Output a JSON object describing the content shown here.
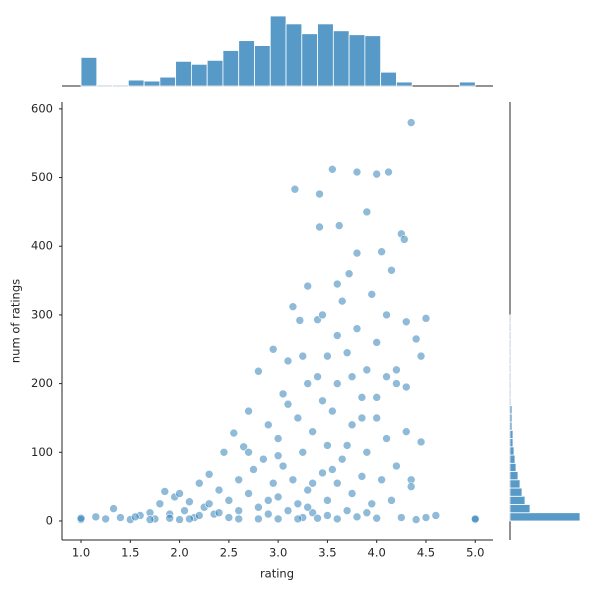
{
  "chart_data": {
    "type": "scatter",
    "x_label": "rating",
    "y_label": "num of ratings",
    "color": "#1f77b4",
    "xlim": [
      0.807,
      5.18
    ],
    "ylim": [
      -27.7,
      610
    ],
    "xticks": [
      {
        "value": 1,
        "label": "1.0"
      },
      {
        "value": 1.5,
        "label": "1.5"
      },
      {
        "value": 2,
        "label": "2.0"
      },
      {
        "value": 2.5,
        "label": "2.5"
      },
      {
        "value": 3,
        "label": "3.0"
      },
      {
        "value": 3.5,
        "label": "3.5"
      },
      {
        "value": 4,
        "label": "4.0"
      },
      {
        "value": 4.5,
        "label": "4.5"
      },
      {
        "value": 5,
        "label": "5.0"
      }
    ],
    "yticks": [
      0,
      100,
      200,
      300,
      400,
      500,
      600
    ],
    "x": [
      1.0,
      1.0,
      1.15,
      1.25,
      1.33,
      1.4,
      1.5,
      1.6,
      1.7,
      1.75,
      1.8,
      1.85,
      1.9,
      1.95,
      2.0,
      2.0,
      2.05,
      2.1,
      2.15,
      2.2,
      2.25,
      2.3,
      2.35,
      2.4,
      2.45,
      2.5,
      2.5,
      2.55,
      2.6,
      2.6,
      2.65,
      2.7,
      2.7,
      2.75,
      2.8,
      2.8,
      2.85,
      2.9,
      2.9,
      2.95,
      2.95,
      3.0,
      3.0,
      3.0,
      3.05,
      3.05,
      3.1,
      3.1,
      3.15,
      3.15,
      3.17,
      3.2,
      3.2,
      3.22,
      3.25,
      3.25,
      3.3,
      3.3,
      3.3,
      3.35,
      3.35,
      3.4,
      3.42,
      3.42,
      3.45,
      3.45,
      3.5,
      3.5,
      3.5,
      3.55,
      3.55,
      3.6,
      3.6,
      3.62,
      3.65,
      3.65,
      3.7,
      3.7,
      3.72,
      3.75,
      3.75,
      3.8,
      3.8,
      3.8,
      3.85,
      3.85,
      3.9,
      3.9,
      3.9,
      3.95,
      3.95,
      4.0,
      4.0,
      4.0,
      4.05,
      4.05,
      4.1,
      4.1,
      4.12,
      4.15,
      4.15,
      4.2,
      4.2,
      4.25,
      4.25,
      4.28,
      4.3,
      4.3,
      4.35,
      4.35,
      4.4,
      4.45,
      4.45,
      4.5,
      4.5,
      4.6,
      5.0,
      5.0,
      2.2,
      2.6,
      2.8,
      3.2,
      3.4,
      3.6,
      3.8,
      4.0,
      4.4,
      1.7,
      1.55,
      2.3,
      2.7,
      3.0,
      3.1,
      3.4,
      3.6,
      3.35,
      3.55,
      3.7,
      3.85,
      4.0,
      4.1,
      4.2,
      4.3,
      4.35,
      3.9,
      3.5,
      3.3,
      2.9,
      2.4,
      2.1,
      1.9,
      3.75,
      3.6,
      3.45,
      3.25
    ],
    "y": [
      2,
      4,
      6,
      3,
      18,
      5,
      2,
      8,
      12,
      3,
      25,
      43,
      10,
      35,
      2,
      40,
      15,
      28,
      5,
      55,
      20,
      68,
      10,
      45,
      100,
      30,
      5,
      128,
      60,
      15,
      108,
      160,
      40,
      75,
      218,
      20,
      90,
      140,
      10,
      250,
      55,
      120,
      35,
      3,
      185,
      80,
      233,
      15,
      312,
      60,
      483,
      150,
      25,
      292,
      100,
      5,
      342,
      200,
      45,
      130,
      12,
      293,
      476,
      428,
      175,
      70,
      240,
      110,
      30,
      512,
      160,
      200,
      55,
      430,
      320,
      90,
      245,
      15,
      360,
      140,
      40,
      390,
      508,
      280,
      180,
      65,
      450,
      220,
      100,
      330,
      25,
      505,
      260,
      150,
      392,
      60,
      300,
      120,
      508,
      365,
      30,
      200,
      80,
      418,
      5,
      410,
      130,
      290,
      580,
      60,
      265,
      240,
      115,
      295,
      5,
      8,
      2,
      3,
      8,
      3,
      3,
      3,
      4,
      3,
      6,
      4,
      2,
      2,
      6,
      25,
      100,
      95,
      170,
      210,
      270,
      55,
      75,
      110,
      150,
      180,
      210,
      220,
      195,
      50,
      12,
      8,
      20,
      30,
      12,
      3,
      4,
      210,
      345,
      300,
      240
    ],
    "marginal_x": {
      "bins": [
        1.0,
        1.16,
        1.32,
        1.48,
        1.64,
        1.8,
        1.96,
        2.12,
        2.28,
        2.44,
        2.6,
        2.76,
        2.92,
        3.08,
        3.24,
        3.4,
        3.56,
        3.72,
        3.88,
        4.04,
        4.2,
        4.36,
        4.52,
        4.68,
        4.84,
        5.0
      ],
      "counts": [
        29,
        1,
        1,
        6,
        5,
        9,
        25,
        22,
        26,
        36,
        46,
        41,
        71,
        63,
        53,
        63,
        56,
        52,
        51,
        14,
        4,
        0,
        0,
        0,
        4
      ]
    },
    "marginal_y": {
      "bins": [
        0,
        12,
        24,
        36,
        48,
        60,
        72,
        84,
        96,
        108,
        120,
        132,
        144,
        156,
        168,
        180,
        192,
        204,
        216,
        228,
        240,
        252,
        264,
        276,
        288,
        300,
        312,
        324,
        336,
        348,
        360,
        372,
        384,
        396,
        408,
        420,
        432,
        444,
        456,
        468,
        480,
        492,
        504,
        516,
        528,
        540,
        552,
        564,
        576,
        588,
        600
      ],
      "counts": [
        70,
        20,
        15,
        12,
        10,
        8,
        6,
        5,
        4,
        3,
        3,
        2,
        2,
        2,
        1,
        1,
        1,
        1,
        1,
        1,
        1,
        1,
        1,
        1,
        1,
        0,
        0,
        0,
        0,
        0,
        0,
        0,
        0,
        0,
        0,
        0,
        0,
        0,
        0,
        0,
        0,
        0,
        0,
        0,
        0,
        0,
        0,
        0,
        0,
        0
      ]
    }
  }
}
